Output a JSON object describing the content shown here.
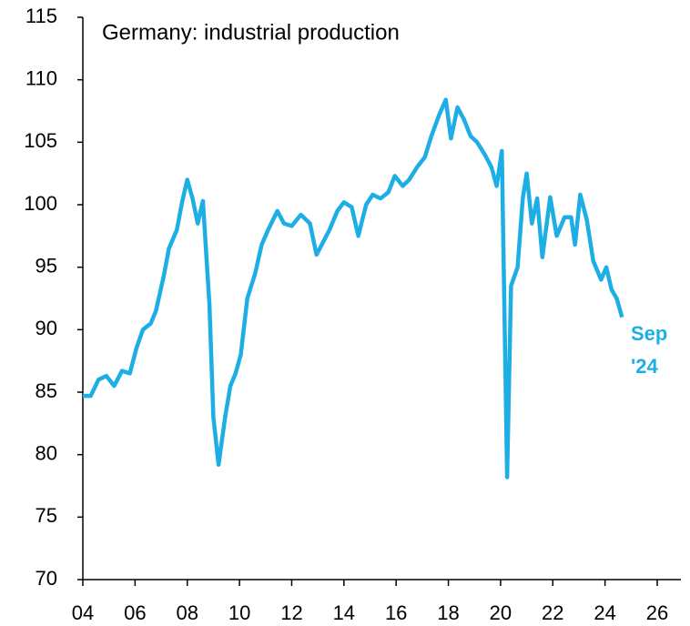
{
  "chart_data": {
    "type": "line",
    "title": "Germany: industrial production",
    "annotation": [
      "Sep",
      "'24"
    ],
    "x": [
      2004.0,
      2004.3,
      2004.6,
      2004.9,
      2005.2,
      2005.5,
      2005.8,
      2006.05,
      2006.3,
      2006.6,
      2006.8,
      2007.1,
      2007.3,
      2007.6,
      2007.8,
      2008.0,
      2008.2,
      2008.4,
      2008.6,
      2008.85,
      2009.0,
      2009.2,
      2009.45,
      2009.65,
      2009.85,
      2010.05,
      2010.3,
      2010.6,
      2010.85,
      2011.1,
      2011.45,
      2011.7,
      2012.0,
      2012.35,
      2012.7,
      2012.95,
      2013.2,
      2013.45,
      2013.75,
      2014.0,
      2014.3,
      2014.55,
      2014.85,
      2015.1,
      2015.4,
      2015.7,
      2015.95,
      2016.25,
      2016.5,
      2016.8,
      2017.1,
      2017.35,
      2017.65,
      2017.9,
      2018.1,
      2018.35,
      2018.6,
      2018.85,
      2019.1,
      2019.4,
      2019.65,
      2019.85,
      2020.05,
      2020.25,
      2020.4,
      2020.65,
      2020.85,
      2021.0,
      2021.2,
      2021.4,
      2021.6,
      2021.9,
      2022.15,
      2022.45,
      2022.7,
      2022.85,
      2023.05,
      2023.3,
      2023.55,
      2023.85,
      2024.05,
      2024.25,
      2024.45,
      2024.65
    ],
    "series": [
      {
        "name": "Germany: industrial production",
        "color": "#1eaee6",
        "values": [
          84.7,
          84.7,
          86,
          86.3,
          85.5,
          86.7,
          86.5,
          88.5,
          90,
          90.5,
          91.5,
          94.3,
          96.5,
          98,
          100.2,
          102,
          100.5,
          98.5,
          100.3,
          92,
          83,
          79.2,
          83,
          85.5,
          86.5,
          88,
          92.5,
          94.5,
          96.8,
          98,
          99.5,
          98.5,
          98.3,
          99.2,
          98.5,
          96,
          97,
          98,
          99.5,
          100.2,
          99.8,
          97.5,
          100,
          100.8,
          100.5,
          101,
          102.3,
          101.5,
          102,
          103,
          103.8,
          105.5,
          107.2,
          108.4,
          105.3,
          107.8,
          106.8,
          105.5,
          105,
          104,
          103,
          101.5,
          104.3,
          78.2,
          93.5,
          95,
          100.5,
          102.5,
          98.5,
          100.5,
          95.8,
          100.6,
          97.5,
          99,
          99,
          96.8,
          100.8,
          98.8,
          95.5,
          94,
          95,
          93.2,
          92.5,
          91
        ]
      }
    ],
    "xlim": [
      2004,
      2026
    ],
    "xticks": [
      {
        "value": 2004,
        "label": "04"
      },
      {
        "value": 2006,
        "label": "06"
      },
      {
        "value": 2008,
        "label": "08"
      },
      {
        "value": 2010,
        "label": "10"
      },
      {
        "value": 2012,
        "label": "12"
      },
      {
        "value": 2014,
        "label": "14"
      },
      {
        "value": 2016,
        "label": "16"
      },
      {
        "value": 2018,
        "label": "18"
      },
      {
        "value": 2020,
        "label": "20"
      },
      {
        "value": 2022,
        "label": "22"
      },
      {
        "value": 2024,
        "label": "24"
      },
      {
        "value": 2026,
        "label": "26"
      }
    ],
    "ylim": [
      70,
      115
    ],
    "yticks": [
      70,
      75,
      80,
      85,
      90,
      95,
      100,
      105,
      110,
      115
    ],
    "grid": false
  }
}
